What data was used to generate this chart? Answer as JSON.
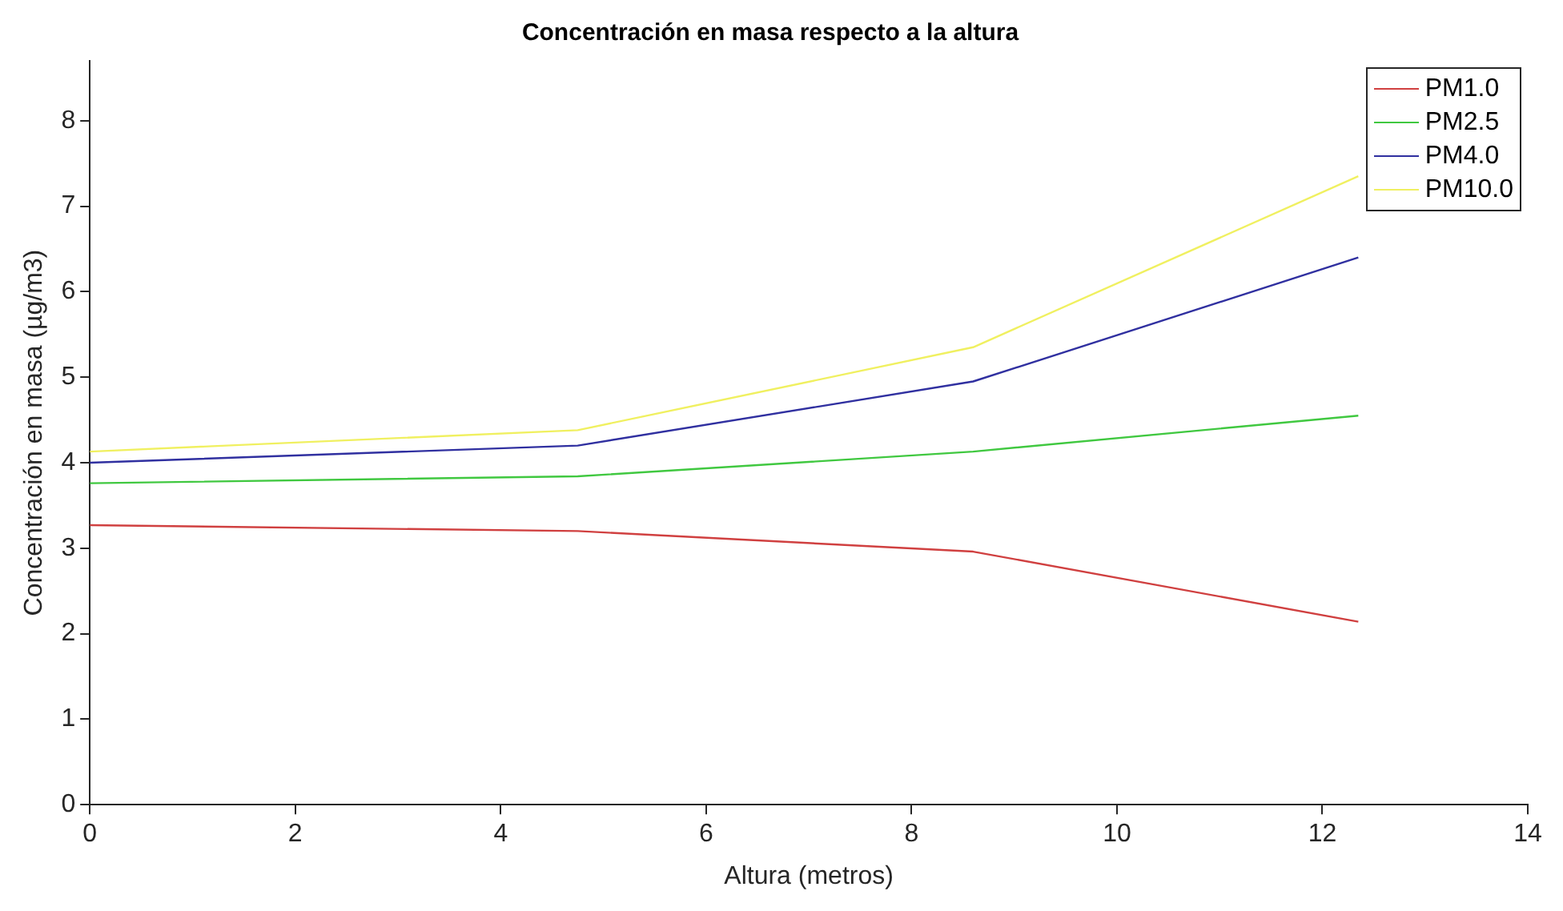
{
  "chart_data": {
    "type": "line",
    "title": "Concentración en masa respecto a la altura",
    "xlabel": "Altura (metros)",
    "ylabel": "Concentración en masa (µg/m3)",
    "x": [
      0,
      4.75,
      8.6,
      12.35
    ],
    "series": [
      {
        "name": "PM1.0",
        "color": "#d04040",
        "values": [
          3.27,
          3.2,
          2.96,
          2.14
        ]
      },
      {
        "name": "PM2.5",
        "color": "#40c840",
        "values": [
          3.76,
          3.84,
          4.13,
          4.55
        ]
      },
      {
        "name": "PM4.0",
        "color": "#3030a0",
        "values": [
          4.0,
          4.2,
          4.95,
          6.4
        ]
      },
      {
        "name": "PM10.0",
        "color": "#f0f060",
        "values": [
          4.13,
          4.38,
          5.35,
          7.35
        ]
      }
    ],
    "xlim": [
      0,
      14
    ],
    "xticks": [
      0,
      2,
      4,
      6,
      8,
      10,
      12,
      14
    ],
    "ylim": [
      0,
      8.7
    ],
    "yticks": [
      0,
      1,
      2,
      3,
      4,
      5,
      6,
      7,
      8
    ],
    "grid": false,
    "legend": "top right",
    "marker": "none",
    "line_style": "solid"
  }
}
